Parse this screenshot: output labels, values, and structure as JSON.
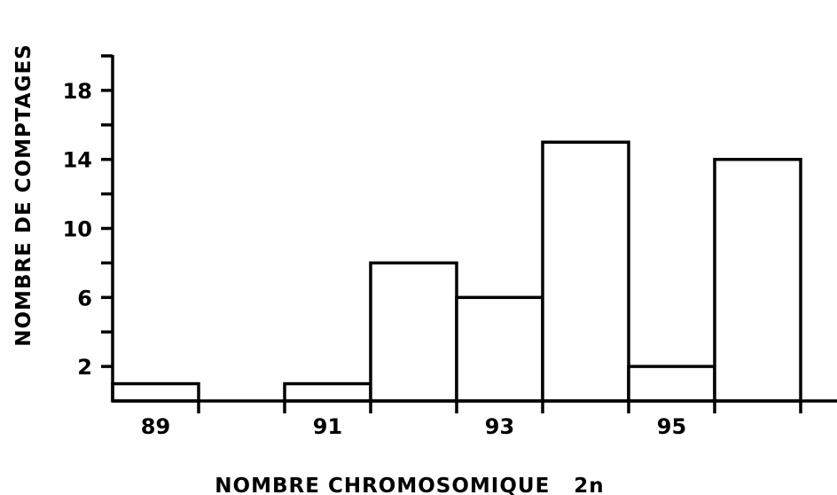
{
  "chart_data": {
    "type": "bar",
    "title": "",
    "xlabel": "NOMBRE CHROMOSOMIQUE   2n",
    "ylabel": "NOMBRE DE COMPTAGES",
    "categories": [
      89,
      90,
      91,
      92,
      93,
      94,
      95,
      96
    ],
    "values": [
      1,
      0,
      1,
      8,
      6,
      15,
      2,
      14
    ],
    "x_tick_labels": [
      "89",
      "91",
      "93",
      "95"
    ],
    "y_tick_labels": [
      "2",
      "6",
      "10",
      "14",
      "18"
    ],
    "xlim": [
      88.5,
      96.5
    ],
    "ylim": [
      0,
      20
    ],
    "grid": false,
    "legend": "none"
  }
}
